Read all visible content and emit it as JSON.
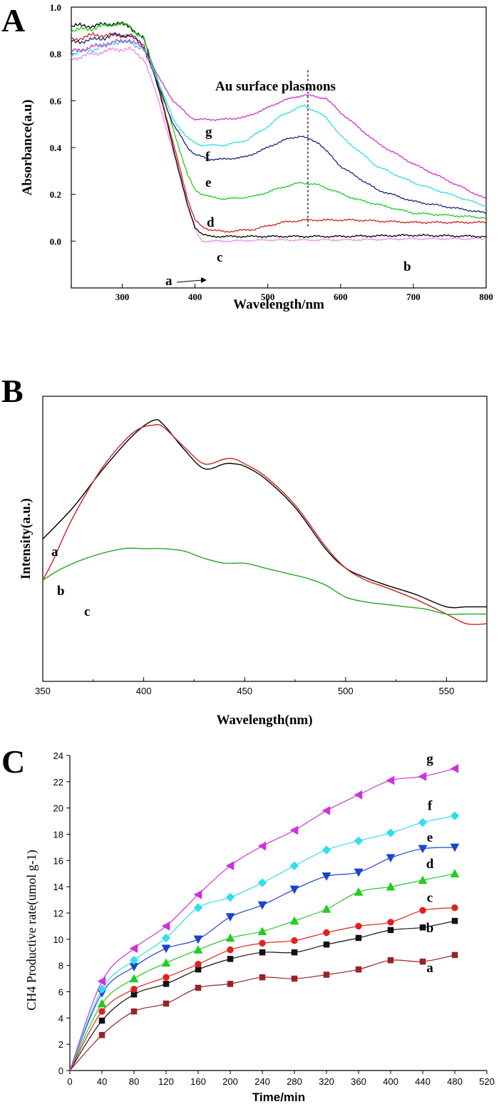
{
  "chart_data": [
    {
      "panel": "A",
      "type": "line",
      "xlabel": "Wavelength/nm",
      "ylabel": "Absorbance(a.u)",
      "xlim": [
        230,
        800
      ],
      "ylim": [
        -0.2,
        1.0
      ],
      "xticks": [
        300,
        400,
        500,
        600,
        700,
        800
      ],
      "yticks": [
        0.0,
        0.2,
        0.4,
        0.6,
        0.8,
        1.0
      ],
      "ytick_labels": [
        "0.0",
        "0.2",
        "0.4",
        "0.6",
        "0.8",
        "1.0"
      ],
      "annotation": "Au surface plasmons",
      "reference_line_x": 555,
      "series": [
        {
          "name": "a",
          "color": "#ee88ee",
          "x": [
            230,
            260,
            290,
            310,
            330,
            350,
            370,
            390,
            400,
            405,
            410,
            420,
            440,
            500,
            600,
            700,
            800
          ],
          "y": [
            0.78,
            0.8,
            0.82,
            0.82,
            0.78,
            0.6,
            0.38,
            0.15,
            0.05,
            0.02,
            0.0,
            0.0,
            0.0,
            0.005,
            0.005,
            0.01,
            0.01
          ]
        },
        {
          "name": "b",
          "color": "#000000",
          "x": [
            230,
            260,
            290,
            310,
            330,
            350,
            370,
            390,
            400,
            410,
            420,
            440,
            500,
            600,
            700,
            800
          ],
          "y": [
            0.92,
            0.92,
            0.93,
            0.92,
            0.86,
            0.65,
            0.4,
            0.15,
            0.06,
            0.03,
            0.02,
            0.02,
            0.02,
            0.02,
            0.025,
            0.02
          ]
        },
        {
          "name": "c",
          "color": "#cc2222",
          "x": [
            230,
            260,
            290,
            310,
            330,
            350,
            370,
            390,
            400,
            410,
            420,
            440,
            480,
            520,
            550,
            580,
            620,
            700,
            800
          ],
          "y": [
            0.86,
            0.88,
            0.88,
            0.88,
            0.84,
            0.66,
            0.42,
            0.18,
            0.09,
            0.06,
            0.05,
            0.04,
            0.05,
            0.08,
            0.09,
            0.09,
            0.09,
            0.08,
            0.08
          ]
        },
        {
          "name": "d",
          "color": "#22cc22",
          "x": [
            230,
            260,
            290,
            310,
            330,
            350,
            370,
            390,
            400,
            410,
            420,
            440,
            480,
            520,
            545,
            570,
            620,
            700,
            800
          ],
          "y": [
            0.9,
            0.91,
            0.93,
            0.92,
            0.86,
            0.68,
            0.48,
            0.28,
            0.22,
            0.2,
            0.19,
            0.18,
            0.19,
            0.23,
            0.25,
            0.24,
            0.18,
            0.12,
            0.1
          ]
        },
        {
          "name": "e",
          "color": "#1a237e",
          "x": [
            230,
            260,
            290,
            310,
            330,
            350,
            370,
            390,
            400,
            410,
            420,
            440,
            470,
            500,
            520,
            545,
            570,
            600,
            650,
            700,
            800
          ],
          "y": [
            0.85,
            0.86,
            0.88,
            0.88,
            0.83,
            0.66,
            0.5,
            0.4,
            0.37,
            0.36,
            0.35,
            0.35,
            0.36,
            0.4,
            0.43,
            0.45,
            0.42,
            0.32,
            0.22,
            0.17,
            0.12
          ]
        },
        {
          "name": "f",
          "color": "#33dddd",
          "x": [
            230,
            260,
            290,
            310,
            330,
            350,
            370,
            390,
            400,
            410,
            420,
            440,
            470,
            500,
            520,
            550,
            580,
            600,
            650,
            700,
            800
          ],
          "y": [
            0.8,
            0.82,
            0.85,
            0.85,
            0.82,
            0.68,
            0.52,
            0.44,
            0.42,
            0.41,
            0.41,
            0.41,
            0.43,
            0.49,
            0.54,
            0.58,
            0.53,
            0.45,
            0.32,
            0.25,
            0.15
          ]
        },
        {
          "name": "g",
          "color": "#cc33cc",
          "x": [
            230,
            260,
            290,
            310,
            330,
            350,
            370,
            390,
            400,
            420,
            440,
            470,
            500,
            520,
            550,
            580,
            600,
            650,
            700,
            800
          ],
          "y": [
            0.81,
            0.83,
            0.85,
            0.86,
            0.82,
            0.7,
            0.6,
            0.54,
            0.52,
            0.52,
            0.52,
            0.53,
            0.57,
            0.6,
            0.625,
            0.61,
            0.55,
            0.42,
            0.33,
            0.18
          ]
        }
      ]
    },
    {
      "panel": "B",
      "type": "line",
      "xlabel": "Wavelength(nm)",
      "ylabel": "Intensity(a.u.)",
      "xlim": [
        350,
        570
      ],
      "ylim": [
        0,
        100
      ],
      "xticks": [
        350,
        400,
        450,
        500,
        550
      ],
      "series": [
        {
          "name": "a",
          "color": "#000000",
          "x": [
            350,
            365,
            380,
            395,
            405,
            410,
            420,
            430,
            440,
            445,
            450,
            460,
            475,
            490,
            500,
            510,
            520,
            535,
            550,
            560,
            570
          ],
          "y": [
            47,
            60,
            76,
            90,
            96,
            94,
            84,
            76,
            78,
            78,
            77,
            72,
            60,
            43,
            35,
            31,
            28,
            24,
            19,
            19,
            19
          ]
        },
        {
          "name": "b",
          "color": "#cc2222",
          "x": [
            350,
            355,
            365,
            380,
            395,
            405,
            410,
            420,
            430,
            440,
            445,
            450,
            460,
            475,
            490,
            500,
            510,
            520,
            535,
            550,
            560,
            570
          ],
          "y": [
            30,
            38,
            56,
            77,
            91,
            94,
            93,
            85,
            78,
            80,
            80,
            78,
            73,
            61,
            44,
            35,
            30,
            27,
            22,
            16,
            12,
            12
          ]
        },
        {
          "name": "c",
          "color": "#22aa22",
          "x": [
            350,
            360,
            375,
            390,
            400,
            410,
            420,
            430,
            440,
            450,
            460,
            470,
            480,
            490,
            500,
            510,
            520,
            530,
            540,
            550,
            560,
            570
          ],
          "y": [
            30,
            35,
            40,
            43,
            43,
            43,
            42,
            39,
            37,
            37,
            35,
            33,
            31,
            28,
            23,
            21,
            20,
            19,
            18,
            16,
            16,
            16
          ]
        }
      ]
    },
    {
      "panel": "C",
      "type": "line",
      "xlabel": "Time/min",
      "ylabel": "CH4 Productive rate(umol g-1)",
      "xlim": [
        0,
        520
      ],
      "ylim": [
        0,
        24
      ],
      "xticks": [
        0,
        40,
        80,
        120,
        160,
        200,
        240,
        280,
        320,
        360,
        400,
        440,
        480,
        520
      ],
      "yticks": [
        0,
        2,
        4,
        6,
        8,
        10,
        12,
        14,
        16,
        18,
        20,
        22,
        24
      ],
      "x": [
        0,
        40,
        80,
        120,
        160,
        200,
        240,
        280,
        320,
        360,
        400,
        440,
        480
      ],
      "series": [
        {
          "name": "a",
          "color": "#992222",
          "marker": "square",
          "values": [
            0,
            2.7,
            4.5,
            5.1,
            6.3,
            6.6,
            7.1,
            7.0,
            7.3,
            7.7,
            8.4,
            8.3,
            8.8
          ]
        },
        {
          "name": "b",
          "color": "#111111",
          "marker": "square",
          "values": [
            0,
            3.8,
            5.8,
            6.6,
            7.7,
            8.5,
            9.0,
            9.0,
            9.6,
            10.1,
            10.7,
            10.9,
            11.4
          ]
        },
        {
          "name": "c",
          "color": "#dd2222",
          "marker": "circle",
          "values": [
            0,
            4.5,
            6.2,
            7.1,
            8.1,
            9.2,
            9.7,
            9.9,
            10.5,
            11.0,
            11.3,
            12.2,
            12.4
          ]
        },
        {
          "name": "d",
          "color": "#22cc22",
          "marker": "triangle-up",
          "values": [
            0,
            5.1,
            7.0,
            8.2,
            9.2,
            10.1,
            10.6,
            11.4,
            12.3,
            13.6,
            14.0,
            14.5,
            15.0
          ]
        },
        {
          "name": "e",
          "color": "#1a44cc",
          "marker": "triangle-down",
          "values": [
            0,
            5.9,
            7.9,
            9.3,
            10.0,
            11.7,
            12.6,
            13.8,
            14.8,
            15.1,
            16.2,
            16.9,
            17.0
          ]
        },
        {
          "name": "f",
          "color": "#33ddee",
          "marker": "diamond",
          "values": [
            0,
            6.2,
            8.4,
            10.1,
            12.4,
            13.2,
            14.3,
            15.6,
            16.8,
            17.5,
            18.1,
            18.9,
            19.4
          ]
        },
        {
          "name": "g",
          "color": "#cc33dd",
          "marker": "triangle-left",
          "values": [
            0,
            6.8,
            9.3,
            11.0,
            13.4,
            15.6,
            17.1,
            18.3,
            19.8,
            21.0,
            22.1,
            22.4,
            23.0
          ]
        }
      ]
    }
  ]
}
